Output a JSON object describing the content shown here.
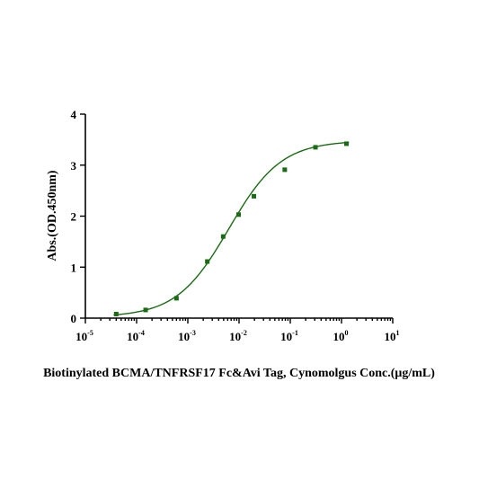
{
  "chart_data": {
    "type": "scatter",
    "xscale": "log",
    "xlabel": "Biotinylated BCMA/TNFRSF17 Fc&Avi Tag, Cynomolgus  Conc.(μg/mL)",
    "ylabel": "Abs.(OD.450nm)",
    "xlim": [
      1e-05,
      10
    ],
    "ylim": [
      0,
      4
    ],
    "x_ticks": [
      {
        "base": "10",
        "exp": "-5"
      },
      {
        "base": "10",
        "exp": "-4"
      },
      {
        "base": "10",
        "exp": "-3"
      },
      {
        "base": "10",
        "exp": "-2"
      },
      {
        "base": "10",
        "exp": "-1"
      },
      {
        "base": "10",
        "exp": "0"
      },
      {
        "base": "10",
        "exp": "1"
      }
    ],
    "y_ticks": [
      "0",
      "1",
      "2",
      "3",
      "4"
    ],
    "grid": false,
    "color": "#1a6b14",
    "points": [
      {
        "x": 4e-05,
        "y": 0.08
      },
      {
        "x": 0.00015,
        "y": 0.16
      },
      {
        "x": 0.0006,
        "y": 0.39
      },
      {
        "x": 0.0024,
        "y": 1.11
      },
      {
        "x": 0.0049,
        "y": 1.6
      },
      {
        "x": 0.0098,
        "y": 2.03
      },
      {
        "x": 0.0195,
        "y": 2.39
      },
      {
        "x": 0.078,
        "y": 2.91
      },
      {
        "x": 0.31,
        "y": 3.35
      },
      {
        "x": 1.25,
        "y": 3.42
      }
    ],
    "fit": {
      "bottom": 0.02,
      "top": 3.48,
      "ec50": 0.0063,
      "hill": 0.85
    }
  }
}
